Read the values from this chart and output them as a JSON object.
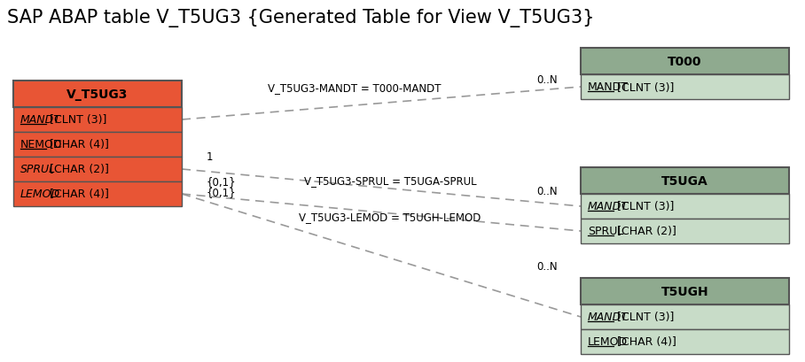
{
  "title": "SAP ABAP table V_T5UG3 {Generated Table for View V_T5UG3}",
  "title_fontsize": 15,
  "background_color": "#ffffff",
  "left_table": {
    "name": "V_T5UG3",
    "header_bg": "#e85535",
    "header_text_color": "#ffffff",
    "row_bg": "#e85535",
    "border_color": "#555555",
    "fields": [
      {
        "name": "MANDT",
        "type": " [CLNT (3)]",
        "italic": true,
        "underline": true
      },
      {
        "name": "NEMOD",
        "type": " [CHAR (4)]",
        "italic": false,
        "underline": true
      },
      {
        "name": "SPRUL",
        "type": " [CHAR (2)]",
        "italic": true,
        "underline": false
      },
      {
        "name": "LEMOD",
        "type": " [CHAR (4)]",
        "italic": true,
        "underline": false
      }
    ]
  },
  "right_tables": [
    {
      "name": "T000",
      "header_bg": "#8faa8f",
      "row_bg": "#c8dcc8",
      "border_color": "#555555",
      "fields": [
        {
          "name": "MANDT",
          "type": " [CLNT (3)]",
          "italic": false,
          "underline": true
        }
      ]
    },
    {
      "name": "T5UGA",
      "header_bg": "#8faa8f",
      "row_bg": "#c8dcc8",
      "border_color": "#555555",
      "fields": [
        {
          "name": "MANDT",
          "type": " [CLNT (3)]",
          "italic": true,
          "underline": true
        },
        {
          "name": "SPRUL",
          "type": " [CHAR (2)]",
          "italic": false,
          "underline": true
        }
      ]
    },
    {
      "name": "T5UGH",
      "header_bg": "#8faa8f",
      "row_bg": "#c8dcc8",
      "border_color": "#555555",
      "fields": [
        {
          "name": "MANDT",
          "type": " [CLNT (3)]",
          "italic": true,
          "underline": true
        },
        {
          "name": "LEMOD",
          "type": " [CHAR (4)]",
          "italic": false,
          "underline": true
        }
      ]
    }
  ]
}
